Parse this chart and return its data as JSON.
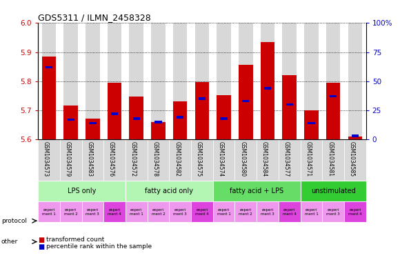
{
  "title": "GDS5311 / ILMN_2458328",
  "samples": [
    "GSM1034573",
    "GSM1034579",
    "GSM1034583",
    "GSM1034576",
    "GSM1034572",
    "GSM1034578",
    "GSM1034582",
    "GSM1034575",
    "GSM1034574",
    "GSM1034580",
    "GSM1034584",
    "GSM1034577",
    "GSM1034571",
    "GSM1034581",
    "GSM1034585"
  ],
  "red_values": [
    5.886,
    5.717,
    5.672,
    5.795,
    5.748,
    5.66,
    5.73,
    5.797,
    5.752,
    5.856,
    5.935,
    5.82,
    5.7,
    5.795,
    5.61
  ],
  "blue_fracs": [
    0.62,
    0.17,
    0.14,
    0.22,
    0.18,
    0.15,
    0.19,
    0.35,
    0.18,
    0.33,
    0.44,
    0.3,
    0.14,
    0.37,
    0.03
  ],
  "ylim_left": [
    5.6,
    6.0
  ],
  "ylim_right": [
    0,
    100
  ],
  "yticks_left": [
    5.6,
    5.7,
    5.8,
    5.9,
    6.0
  ],
  "yticks_right": [
    0,
    25,
    50,
    75,
    100
  ],
  "protocols": [
    "LPS only",
    "fatty acid only",
    "fatty acid + LPS",
    "unstimulated"
  ],
  "protocol_colors": [
    "#b3f5b3",
    "#b3f5b3",
    "#66dd66",
    "#33cc33"
  ],
  "protocol_ranges": [
    [
      0,
      4
    ],
    [
      4,
      8
    ],
    [
      8,
      12
    ],
    [
      12,
      15
    ]
  ],
  "experiments": [
    "experi\nment 1",
    "experi\nment 2",
    "experi\nment 3",
    "experi\nment 4",
    "experi\nment 1",
    "experi\nment 2",
    "experi\nment 3",
    "experi\nment 4",
    "experi\nment 1",
    "experi\nment 2",
    "experi\nment 3",
    "experi\nment 4",
    "experi\nment 1",
    "experi\nment 3",
    "experi\nment 4"
  ],
  "exp_is_4": [
    false,
    false,
    false,
    true,
    false,
    false,
    false,
    true,
    false,
    false,
    false,
    true,
    false,
    false,
    true
  ],
  "bar_width": 0.65,
  "red_color": "#cc0000",
  "blue_color": "#0000cc",
  "bg_color": "#ffffff",
  "bar_bg": "#d8d8d8",
  "left_label_color": "#cc0000",
  "right_label_color": "#0000cc"
}
